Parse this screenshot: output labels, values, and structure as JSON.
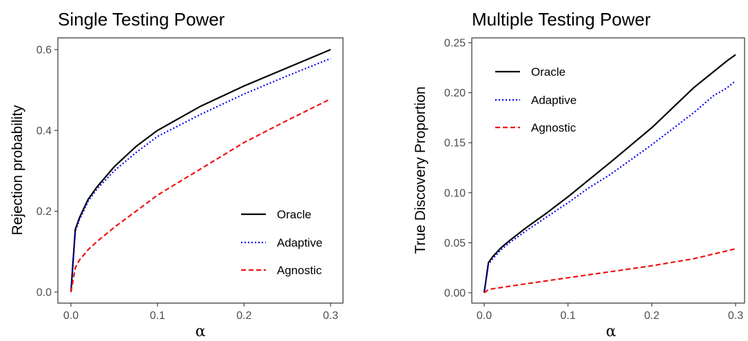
{
  "chart_data": [
    {
      "type": "line",
      "title": "Single Testing Power",
      "xlabel": "α",
      "ylabel": "Rejection probability",
      "xlim": [
        0,
        0.3
      ],
      "ylim": [
        0,
        0.6
      ],
      "xticks": [
        "0.0",
        "0.1",
        "0.2",
        "0.3"
      ],
      "yticks": [
        "0.0",
        "0.2",
        "0.4",
        "0.6"
      ],
      "legend_position": "bottom-right",
      "series": [
        {
          "name": "Oracle",
          "color": "#000000",
          "dash": "solid",
          "x": [
            0,
            0.005,
            0.01,
            0.02,
            0.03,
            0.05,
            0.075,
            0.1,
            0.15,
            0.2,
            0.25,
            0.3
          ],
          "y": [
            0,
            0.155,
            0.185,
            0.23,
            0.26,
            0.31,
            0.36,
            0.4,
            0.46,
            0.51,
            0.555,
            0.6
          ]
        },
        {
          "name": "Adaptive",
          "color": "#0000ee",
          "dash": "dotted",
          "x": [
            0,
            0.005,
            0.01,
            0.02,
            0.03,
            0.05,
            0.075,
            0.1,
            0.15,
            0.2,
            0.25,
            0.3
          ],
          "y": [
            0,
            0.15,
            0.18,
            0.225,
            0.255,
            0.3,
            0.345,
            0.385,
            0.44,
            0.49,
            0.535,
            0.578
          ]
        },
        {
          "name": "Agnostic",
          "color": "#ee1111",
          "dash": "dashed",
          "x": [
            0,
            0.005,
            0.01,
            0.02,
            0.03,
            0.05,
            0.075,
            0.1,
            0.15,
            0.2,
            0.25,
            0.3
          ],
          "y": [
            0,
            0.06,
            0.08,
            0.105,
            0.125,
            0.16,
            0.2,
            0.24,
            0.305,
            0.37,
            0.425,
            0.478
          ]
        }
      ]
    },
    {
      "type": "line",
      "title": "Multiple Testing Power",
      "xlabel": "α",
      "ylabel": "True Discovery Proportion",
      "xlim": [
        0,
        0.3
      ],
      "ylim": [
        0,
        0.25
      ],
      "xticks": [
        "0.0",
        "0.1",
        "0.2",
        "0.3"
      ],
      "yticks": [
        "0.00",
        "0.05",
        "0.10",
        "0.15",
        "0.20",
        "0.25"
      ],
      "legend_position": "top-left",
      "series": [
        {
          "name": "Oracle",
          "color": "#000000",
          "dash": "solid",
          "x": [
            0,
            0.005,
            0.01,
            0.02,
            0.03,
            0.05,
            0.075,
            0.1,
            0.15,
            0.2,
            0.25,
            0.29,
            0.3
          ],
          "y": [
            0,
            0.03,
            0.036,
            0.045,
            0.052,
            0.065,
            0.08,
            0.096,
            0.13,
            0.165,
            0.205,
            0.232,
            0.238
          ]
        },
        {
          "name": "Adaptive",
          "color": "#0000ee",
          "dash": "dotted",
          "x": [
            0,
            0.005,
            0.01,
            0.02,
            0.03,
            0.05,
            0.075,
            0.1,
            0.125,
            0.15,
            0.2,
            0.25,
            0.275,
            0.28,
            0.29,
            0.3
          ],
          "y": [
            0,
            0.028,
            0.034,
            0.043,
            0.05,
            0.062,
            0.076,
            0.09,
            0.105,
            0.118,
            0.148,
            0.18,
            0.198,
            0.2,
            0.205,
            0.212
          ]
        },
        {
          "name": "Agnostic",
          "color": "#ee1111",
          "dash": "dashed",
          "x": [
            0,
            0.005,
            0.01,
            0.05,
            0.1,
            0.15,
            0.2,
            0.25,
            0.3
          ],
          "y": [
            0,
            0.003,
            0.004,
            0.009,
            0.015,
            0.021,
            0.027,
            0.034,
            0.044
          ]
        }
      ]
    }
  ]
}
